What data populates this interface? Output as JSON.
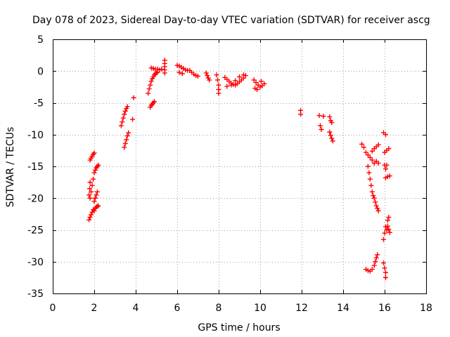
{
  "chart_data": {
    "type": "scatter",
    "title": "Day 078 of 2023, Sidereal Day-to-day VTEC variation (SDTVAR) for receiver ascg",
    "xlabel": "GPS time / hours",
    "ylabel": "SDTVAR / TECUs",
    "xlim": [
      0,
      18
    ],
    "ylim": [
      -35,
      5
    ],
    "xticks": [
      0,
      2,
      4,
      6,
      8,
      10,
      12,
      14,
      16,
      18
    ],
    "yticks": [
      5,
      0,
      -5,
      -10,
      -15,
      -20,
      -25,
      -30,
      -35
    ],
    "grid": true,
    "marker": "+",
    "marker_color": "#ff0000",
    "series": [
      {
        "name": "SDTVAR",
        "points": [
          [
            1.75,
            -23.4
          ],
          [
            1.8,
            -23.0
          ],
          [
            1.85,
            -22.6
          ],
          [
            1.9,
            -22.2
          ],
          [
            1.95,
            -21.8
          ],
          [
            2.0,
            -22.0
          ],
          [
            2.05,
            -21.6
          ],
          [
            2.1,
            -21.4
          ],
          [
            2.15,
            -21.3
          ],
          [
            2.2,
            -21.2
          ],
          [
            1.8,
            -20.0
          ],
          [
            1.85,
            -19.0
          ],
          [
            1.9,
            -18.0
          ],
          [
            1.95,
            -17.0
          ],
          [
            2.0,
            -16.0
          ],
          [
            2.05,
            -15.6
          ],
          [
            2.1,
            -15.2
          ],
          [
            2.15,
            -15.0
          ],
          [
            2.2,
            -14.8
          ],
          [
            1.75,
            -19.5
          ],
          [
            1.78,
            -18.5
          ],
          [
            1.8,
            -17.5
          ],
          [
            1.8,
            -14.0
          ],
          [
            1.85,
            -13.7
          ],
          [
            1.9,
            -13.4
          ],
          [
            1.95,
            -13.1
          ],
          [
            2.0,
            -12.9
          ],
          [
            2.0,
            -20.5
          ],
          [
            2.05,
            -20.0
          ],
          [
            2.1,
            -19.5
          ],
          [
            2.15,
            -19.0
          ],
          [
            3.3,
            -8.6
          ],
          [
            3.35,
            -8.0
          ],
          [
            3.4,
            -7.4
          ],
          [
            3.45,
            -6.8
          ],
          [
            3.5,
            -6.3
          ],
          [
            3.55,
            -5.9
          ],
          [
            3.6,
            -5.6
          ],
          [
            3.45,
            -12.0
          ],
          [
            3.5,
            -11.4
          ],
          [
            3.55,
            -10.8
          ],
          [
            3.6,
            -10.2
          ],
          [
            3.65,
            -9.7
          ],
          [
            3.85,
            -7.6
          ],
          [
            3.9,
            -4.2
          ],
          [
            4.7,
            -5.7
          ],
          [
            4.75,
            -5.4
          ],
          [
            4.8,
            -5.2
          ],
          [
            4.85,
            -5.0
          ],
          [
            4.9,
            -4.8
          ],
          [
            4.6,
            -3.5
          ],
          [
            4.65,
            -2.8
          ],
          [
            4.7,
            -2.2
          ],
          [
            4.75,
            -1.6
          ],
          [
            4.8,
            -1.2
          ],
          [
            4.85,
            -0.9
          ],
          [
            4.9,
            -0.6
          ],
          [
            4.95,
            -0.4
          ],
          [
            5.0,
            -0.3
          ],
          [
            5.05,
            -0.2
          ],
          [
            4.75,
            0.5
          ],
          [
            4.85,
            0.4
          ],
          [
            4.95,
            0.3
          ],
          [
            5.05,
            0.3
          ],
          [
            5.15,
            0.2
          ],
          [
            5.25,
            0.3
          ],
          [
            5.4,
            1.7
          ],
          [
            5.4,
            1.2
          ],
          [
            5.4,
            0.7
          ],
          [
            5.4,
            0.2
          ],
          [
            5.4,
            -0.3
          ],
          [
            6.0,
            0.9
          ],
          [
            6.1,
            0.8
          ],
          [
            6.2,
            0.6
          ],
          [
            6.3,
            0.4
          ],
          [
            6.4,
            0.2
          ],
          [
            6.5,
            0.1
          ],
          [
            6.1,
            -0.2
          ],
          [
            6.25,
            -0.4
          ],
          [
            6.6,
            0.1
          ],
          [
            6.7,
            -0.2
          ],
          [
            6.8,
            -0.5
          ],
          [
            6.9,
            -0.7
          ],
          [
            7.0,
            -0.8
          ],
          [
            7.4,
            -0.3
          ],
          [
            7.45,
            -0.7
          ],
          [
            7.5,
            -1.1
          ],
          [
            7.55,
            -1.4
          ],
          [
            7.9,
            -0.6
          ],
          [
            7.95,
            -1.4
          ],
          [
            8.0,
            -2.2
          ],
          [
            8.0,
            -2.9
          ],
          [
            8.0,
            -3.5
          ],
          [
            8.3,
            -1.0
          ],
          [
            8.4,
            -1.3
          ],
          [
            8.5,
            -1.6
          ],
          [
            8.6,
            -1.9
          ],
          [
            8.7,
            -2.1
          ],
          [
            8.8,
            -2.2
          ],
          [
            8.9,
            -2.0
          ],
          [
            9.0,
            -1.7
          ],
          [
            9.1,
            -1.4
          ],
          [
            9.2,
            -1.1
          ],
          [
            9.3,
            -0.7
          ],
          [
            8.4,
            -2.4
          ],
          [
            8.6,
            -2.2
          ],
          [
            8.8,
            -1.5
          ],
          [
            9.0,
            -0.9
          ],
          [
            9.2,
            -0.6
          ],
          [
            9.7,
            -1.4
          ],
          [
            9.8,
            -1.8
          ],
          [
            9.9,
            -2.2
          ],
          [
            10.0,
            -2.5
          ],
          [
            10.1,
            -2.3
          ],
          [
            10.2,
            -2.0
          ],
          [
            9.75,
            -2.7
          ],
          [
            9.85,
            -2.9
          ],
          [
            10.05,
            -1.6
          ],
          [
            11.95,
            -6.2
          ],
          [
            11.95,
            -6.8
          ],
          [
            12.85,
            -7.0
          ],
          [
            12.9,
            -8.6
          ],
          [
            12.95,
            -9.2
          ],
          [
            13.05,
            -7.1
          ],
          [
            13.35,
            -7.2
          ],
          [
            13.4,
            -7.8
          ],
          [
            13.45,
            -8.1
          ],
          [
            13.35,
            -9.6
          ],
          [
            13.4,
            -10.1
          ],
          [
            13.45,
            -10.6
          ],
          [
            13.5,
            -11.0
          ],
          [
            14.9,
            -11.5
          ],
          [
            15.0,
            -12.0
          ],
          [
            15.1,
            -12.8
          ],
          [
            15.2,
            -13.2
          ],
          [
            15.3,
            -13.6
          ],
          [
            15.4,
            -12.6
          ],
          [
            15.5,
            -12.2
          ],
          [
            15.6,
            -11.9
          ],
          [
            15.7,
            -11.6
          ],
          [
            15.4,
            -14.0
          ],
          [
            15.5,
            -14.5
          ],
          [
            15.6,
            -14.2
          ],
          [
            15.7,
            -14.5
          ],
          [
            15.2,
            -15.0
          ],
          [
            15.25,
            -16.0
          ],
          [
            15.3,
            -17.0
          ],
          [
            15.35,
            -18.0
          ],
          [
            15.4,
            -19.0
          ],
          [
            15.45,
            -19.6
          ],
          [
            15.5,
            -20.0
          ],
          [
            15.55,
            -20.6
          ],
          [
            15.6,
            -21.2
          ],
          [
            15.65,
            -21.6
          ],
          [
            15.7,
            -22.0
          ],
          [
            15.1,
            -31.2
          ],
          [
            15.2,
            -31.4
          ],
          [
            15.3,
            -31.5
          ],
          [
            15.4,
            -31.2
          ],
          [
            15.5,
            -30.6
          ],
          [
            15.55,
            -30.0
          ],
          [
            15.6,
            -29.4
          ],
          [
            15.65,
            -28.9
          ],
          [
            15.95,
            -9.7
          ],
          [
            16.05,
            -10.0
          ],
          [
            16.0,
            -12.8
          ],
          [
            16.1,
            -12.5
          ],
          [
            16.2,
            -12.2
          ],
          [
            16.0,
            -14.8
          ],
          [
            16.05,
            -15.4
          ],
          [
            16.1,
            -14.8
          ],
          [
            16.05,
            -16.8
          ],
          [
            16.15,
            -16.6
          ],
          [
            16.25,
            -16.5
          ],
          [
            15.95,
            -26.5
          ],
          [
            16.0,
            -25.5
          ],
          [
            16.05,
            -24.5
          ],
          [
            16.1,
            -25.0
          ],
          [
            16.15,
            -24.4
          ],
          [
            16.2,
            -24.9
          ],
          [
            16.25,
            -25.4
          ],
          [
            16.15,
            -23.5
          ],
          [
            16.2,
            -23.0
          ],
          [
            15.95,
            -30.2
          ],
          [
            16.0,
            -31.0
          ],
          [
            16.05,
            -31.7
          ],
          [
            16.05,
            -32.5
          ]
        ]
      }
    ]
  }
}
